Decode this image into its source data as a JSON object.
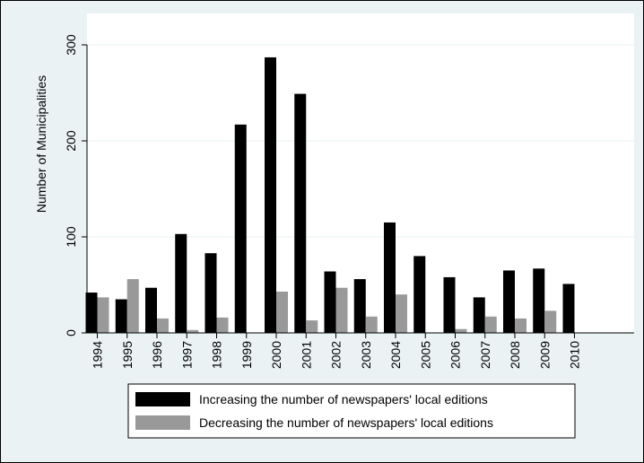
{
  "chart_data": {
    "type": "bar",
    "title": "",
    "xlabel": "",
    "ylabel": "Number of Municipalities",
    "ylim": [
      0,
      300
    ],
    "yticks": [
      0,
      100,
      200,
      300
    ],
    "grid": true,
    "legend_position": "bottom",
    "categories": [
      "1994",
      "1995",
      "1996",
      "1997",
      "1998",
      "1999",
      "2000",
      "2001",
      "2002",
      "2003",
      "2004",
      "2005",
      "2006",
      "2007",
      "2008",
      "2009",
      "2010"
    ],
    "series": [
      {
        "name": "Increasing the number of newspapers' local editions",
        "color": "#000000",
        "values": [
          42,
          35,
          47,
          103,
          83,
          217,
          287,
          249,
          64,
          56,
          115,
          80,
          58,
          37,
          65,
          67,
          51
        ]
      },
      {
        "name": "Decreasing the number of newspapers' local editions",
        "color": "#999999",
        "values": [
          37,
          56,
          15,
          3,
          16,
          0,
          43,
          13,
          47,
          17,
          40,
          0,
          4,
          17,
          15,
          23,
          0
        ]
      }
    ]
  }
}
